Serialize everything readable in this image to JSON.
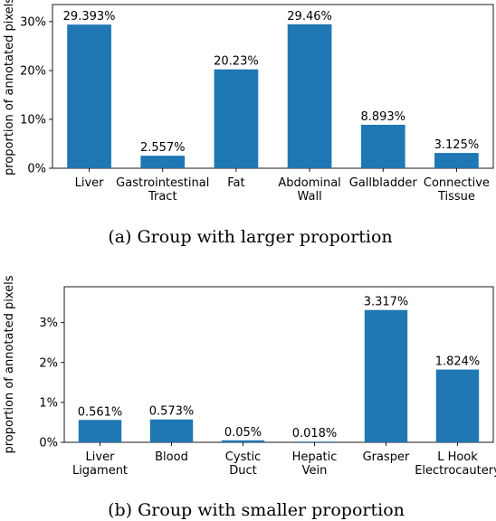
{
  "chart_data": [
    {
      "type": "bar",
      "categories": [
        [
          "Liver"
        ],
        [
          "Gastrointestinal",
          "Tract"
        ],
        [
          "Fat"
        ],
        [
          "Abdominal",
          "Wall"
        ],
        [
          "Gallbladder"
        ],
        [
          "Connective",
          "Tissue"
        ]
      ],
      "values": [
        29.393,
        2.557,
        20.23,
        29.46,
        8.893,
        3.125
      ],
      "value_labels": [
        "29.393%",
        "2.557%",
        "20.23%",
        "29.46%",
        "8.893%",
        "3.125%"
      ],
      "ylabel": "proportion of annotated pixels",
      "yticks": [
        "0%",
        "10%",
        "20%",
        "30%"
      ],
      "ytick_values": [
        0,
        10,
        20,
        30
      ],
      "ylim": [
        0,
        33.5
      ],
      "caption": "(a) Group with larger proportion",
      "bar_color": "#1f77b4"
    },
    {
      "type": "bar",
      "categories": [
        [
          "Liver",
          "Ligament"
        ],
        [
          "Blood"
        ],
        [
          "Cystic",
          "Duct"
        ],
        [
          "Hepatic",
          "Vein"
        ],
        [
          "Grasper"
        ],
        [
          "L Hook",
          "Electrocautery"
        ]
      ],
      "values": [
        0.561,
        0.573,
        0.05,
        0.018,
        3.317,
        1.824
      ],
      "value_labels": [
        "0.561%",
        "0.573%",
        "0.05%",
        "0.018%",
        "3.317%",
        "1.824%"
      ],
      "ylabel": "proportion of annotated pixels",
      "yticks": [
        "0%",
        "1%",
        "2%",
        "3%"
      ],
      "ytick_values": [
        0,
        1,
        2,
        3
      ],
      "ylim": [
        0,
        3.9
      ],
      "caption": "(b) Group with smaller proportion",
      "bar_color": "#1f77b4"
    }
  ]
}
